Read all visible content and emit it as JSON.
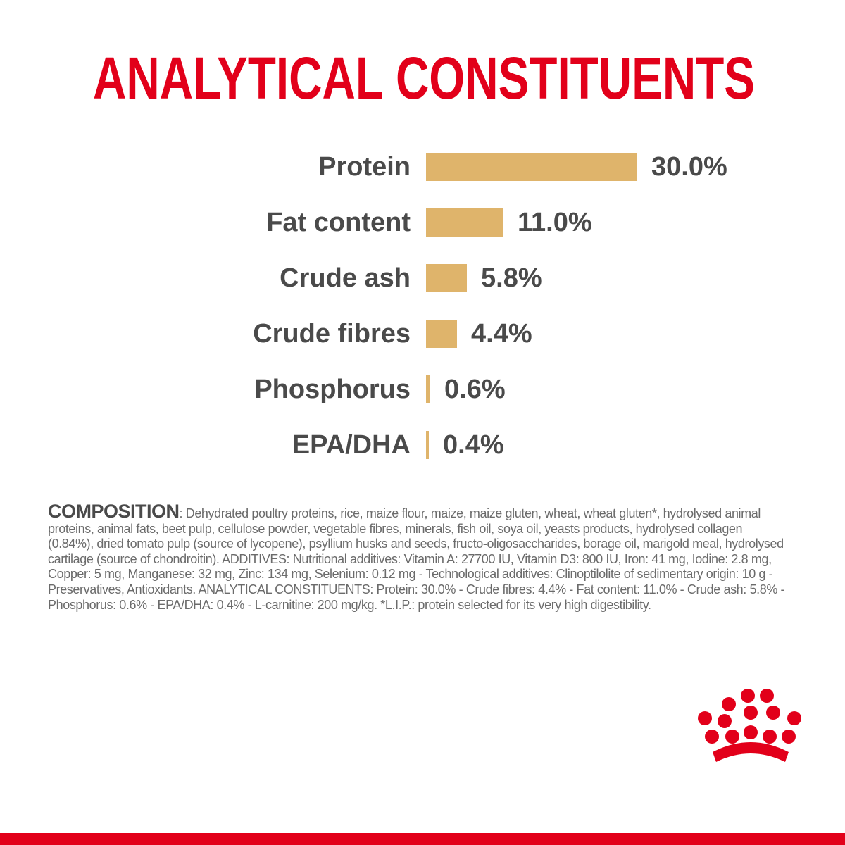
{
  "chart_data": {
    "type": "bar",
    "orientation": "horizontal",
    "title": "ANALYTICAL CONSTITUENTS",
    "categories": [
      "Protein",
      "Fat content",
      "Crude ash",
      "Crude fibres",
      "Phosphorus",
      "EPA/DHA"
    ],
    "values": [
      30.0,
      11.0,
      5.8,
      4.4,
      0.6,
      0.4
    ],
    "value_labels": [
      "30.0%",
      "11.0%",
      "5.8%",
      "4.4%",
      "0.6%",
      "0.4%"
    ],
    "color": "#dfb46b"
  },
  "composition": {
    "heading": "COMPOSITION",
    "text": ": Dehydrated poultry proteins, rice, maize flour, maize, maize gluten, wheat, wheat gluten*, hydrolysed animal proteins, animal fats, beet pulp, cellulose powder, vegetable fibres, minerals, fish oil, soya oil, yeasts products, hydrolysed collagen (0.84%), dried tomato pulp (source of lycopene), psyllium husks and seeds, fructo-oligosaccharides, borage oil, marigold meal, hydrolysed cartilage (source of chondroitin). ADDITIVES: Nutritional additives: Vitamin A: 27700 IU, Vitamin D3: 800 IU, Iron: 41 mg, Iodine: 2.8 mg, Copper: 5 mg, Manganese: 32 mg, Zinc: 134 mg, Selenium: 0.12 mg - Technological additives: Clinoptilolite of sedimentary origin: 10 g - Preservatives, Antioxidants. ANALYTICAL CONSTITUENTS: Protein: 30.0% - Crude fibres: 4.4% - Fat content: 11.0% - Crude ash: 5.8% - Phosphorus: 0.6% - EPA/DHA: 0.4% - L-carnitine: 200 mg/kg. *L.I.P.:  protein selected for its very high digestibility."
  }
}
